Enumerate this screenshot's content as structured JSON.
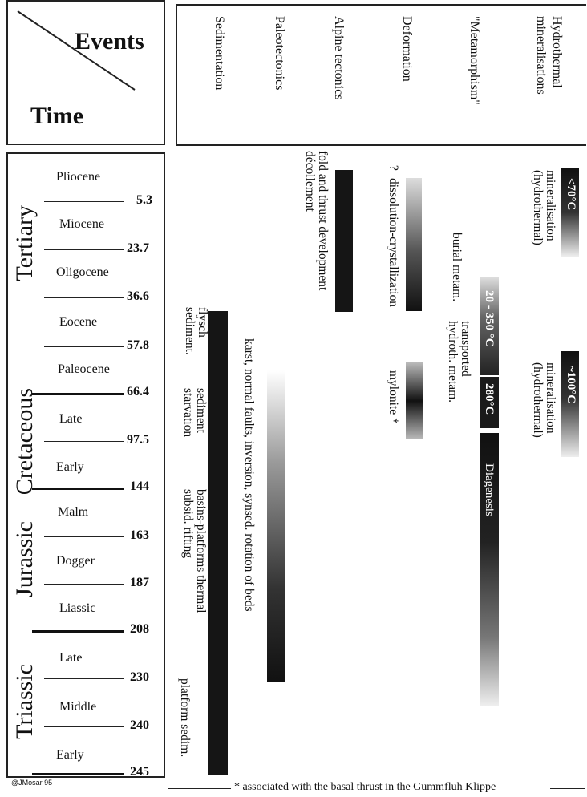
{
  "header": {
    "events": "Events",
    "time": "Time"
  },
  "columns": [
    "Sedimentation",
    "Paleotectonics",
    "Alpine tectonics",
    "Deformation",
    "\"Metamorphism\"",
    "Hydrothermal mineralisations"
  ],
  "periods": [
    "Tertiary",
    "Cretaceous",
    "Jurassic",
    "Triassic"
  ],
  "epochs": [
    "Pliocene",
    "Miocene",
    "Oligocene",
    "Eocene",
    "Paleocene",
    "Late",
    "Early",
    "Malm",
    "Dogger",
    "Liassic",
    "Late",
    "Middle",
    "Early"
  ],
  "ages": [
    "5.3",
    "23.7",
    "36.6",
    "57.8",
    "66.4",
    "97.5",
    "144",
    "163",
    "187",
    "208",
    "230",
    "240",
    "245"
  ],
  "bars": {
    "hydro1": "<70°C",
    "hydro2": "~100°C",
    "meta1": "20 - 350 °C",
    "meta2": "280°C",
    "meta3": "Diagenesis"
  },
  "annotations": {
    "hydro1": "mineralisation (hydrothermal)",
    "hydro2": "mineralisation (hydrothermal)",
    "meta_a": "transported hydroth. metam.",
    "meta_b": "burial metam.",
    "deform_q": "?",
    "deform1": "dissolution-crystallization",
    "deform2": "mylonite *",
    "alpine": "fold and thrust development décollement",
    "paleo": "karst, normal faults, inversion, synsed. rotation of beds",
    "sed1": "flysch sediment.",
    "sed2": "sediment starvation",
    "sed3": "basins-platforms thermal subsid. rifting",
    "sed4": "platform sedim."
  },
  "footer": {
    "credit": "@JMosar 95",
    "note": "* associated with the basal thrust in the Gummfluh Klippe"
  }
}
